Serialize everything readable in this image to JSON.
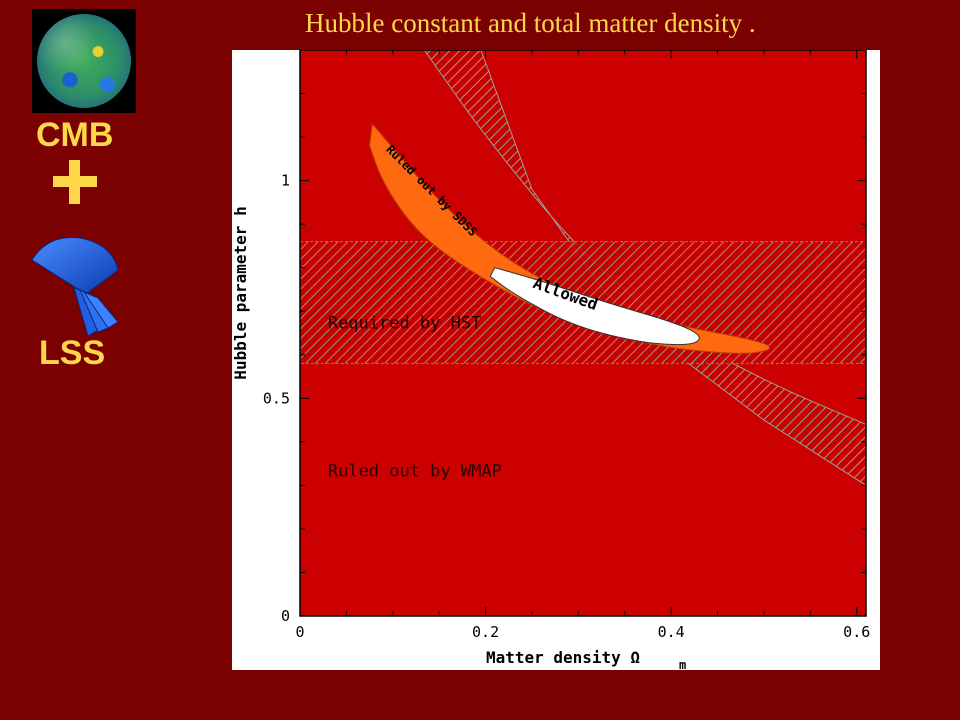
{
  "slide": {
    "title": "Hubble constant and total matter density .",
    "cmb_label": "CMB",
    "lss_label": "LSS",
    "plus_symbol": "+"
  },
  "colors": {
    "background": "#7b0000",
    "title": "#ffd84a",
    "plot_background": "#cc0000",
    "ruled_out_sdss": "#ff6a10",
    "allowed": "#ffffff",
    "hatch": "#9aa89a"
  },
  "chart_data": {
    "type": "area",
    "xlabel": "Matter density Ω",
    "xlabel_subscript": "m",
    "ylabel": "Hubble parameter h",
    "xlim": [
      0,
      0.61
    ],
    "ylim": [
      0,
      1.3
    ],
    "xticks": [
      0,
      0.2,
      0.4,
      0.6
    ],
    "xtick_labels": [
      "0",
      "0.2",
      "0.4",
      "0.6"
    ],
    "yticks": [
      0,
      0.5,
      1
    ],
    "ytick_labels": [
      "0",
      "0.5",
      "1"
    ],
    "grid": false,
    "regions": [
      {
        "name": "Ruled out by WMAP",
        "label_at": [
          0.03,
          0.32
        ],
        "description": "entire plotted plane outside the WMAP band"
      },
      {
        "name": "Required by HST",
        "label_at": [
          0.03,
          0.66
        ],
        "h_range": [
          0.58,
          0.86
        ]
      },
      {
        "name": "WMAP band",
        "upper_edge": [
          [
            0.134,
            1.3
          ],
          [
            0.2,
            1.1
          ],
          [
            0.3,
            0.84
          ],
          [
            0.4,
            0.66
          ],
          [
            0.5,
            0.54
          ],
          [
            0.61,
            0.44
          ]
        ],
        "lower_edge": [
          [
            0.195,
            1.3
          ],
          [
            0.25,
            0.98
          ],
          [
            0.33,
            0.74
          ],
          [
            0.4,
            0.61
          ],
          [
            0.5,
            0.45
          ],
          [
            0.61,
            0.3
          ]
        ]
      },
      {
        "name": "Ruled out by SDSS",
        "outline": [
          [
            0.078,
            1.13
          ],
          [
            0.09,
            1.1
          ],
          [
            0.15,
            0.95
          ],
          [
            0.22,
            0.82
          ],
          [
            0.3,
            0.73
          ],
          [
            0.4,
            0.67
          ],
          [
            0.5,
            0.63
          ],
          [
            0.51,
            0.61
          ],
          [
            0.47,
            0.6
          ],
          [
            0.38,
            0.62
          ],
          [
            0.28,
            0.68
          ],
          [
            0.2,
            0.77
          ],
          [
            0.13,
            0.87
          ],
          [
            0.09,
            0.99
          ],
          [
            0.075,
            1.08
          ]
        ]
      },
      {
        "name": "Allowed",
        "outline": [
          [
            0.21,
            0.8
          ],
          [
            0.26,
            0.77
          ],
          [
            0.33,
            0.72
          ],
          [
            0.41,
            0.67
          ],
          [
            0.435,
            0.64
          ],
          [
            0.42,
            0.62
          ],
          [
            0.36,
            0.63
          ],
          [
            0.29,
            0.67
          ],
          [
            0.23,
            0.74
          ],
          [
            0.205,
            0.78
          ]
        ]
      }
    ],
    "annotations": {
      "wmap": "Ruled out by WMAP",
      "hst": "Required by HST",
      "sdss": "Ruled out by SDSS",
      "allowed": "Allowed"
    }
  }
}
